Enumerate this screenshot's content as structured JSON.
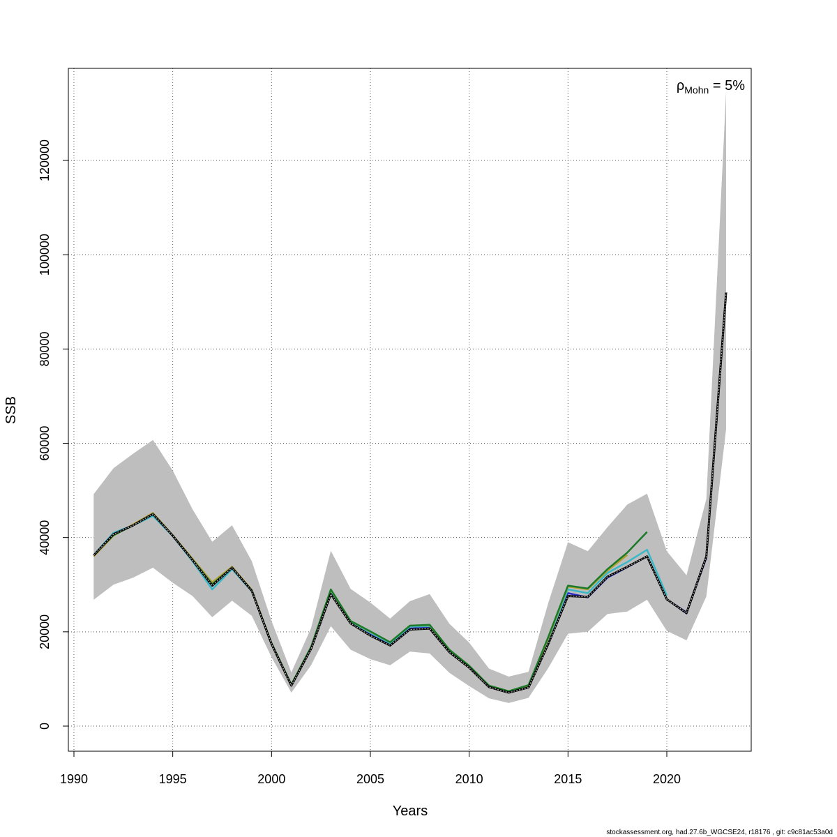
{
  "chart_data": {
    "type": "line",
    "xlabel": "Years",
    "ylabel": "SSB",
    "xlim": [
      1990,
      2023
    ],
    "ylim": [
      0,
      135000
    ],
    "grid": true,
    "x_ticks": [
      1990,
      1995,
      2000,
      2005,
      2010,
      2015,
      2020
    ],
    "y_ticks": [
      0,
      20000,
      40000,
      60000,
      80000,
      100000,
      120000
    ],
    "annotation": {
      "symbol": "ρ",
      "subscript": "Mohn",
      "text": " = 5%"
    },
    "footer": "stockassessment.org, had.27.6b_WGCSE24, r18176 , git: c9c81ac53a0d",
    "band": {
      "x": [
        1991,
        1992,
        1993,
        1994,
        1995,
        1996,
        1997,
        1998,
        1999,
        2000,
        2001,
        2002,
        2003,
        2004,
        2005,
        2006,
        2007,
        2008,
        2009,
        2010,
        2011,
        2012,
        2013,
        2014,
        2015,
        2016,
        2017,
        2018,
        2019,
        2020,
        2021,
        2022,
        2023
      ],
      "lower": [
        26800,
        30000,
        31500,
        33600,
        30400,
        27600,
        23100,
        26600,
        23400,
        14600,
        7100,
        12900,
        21200,
        16200,
        14200,
        12900,
        15800,
        15400,
        11300,
        8500,
        5900,
        4900,
        6000,
        12300,
        19600,
        20000,
        23800,
        24300,
        26800,
        20200,
        18200,
        27500,
        63000
      ],
      "upper": [
        49200,
        54700,
        57800,
        60700,
        54200,
        46000,
        39100,
        42600,
        35000,
        22300,
        11400,
        20800,
        37200,
        29100,
        26200,
        22800,
        26500,
        28000,
        21700,
        17700,
        12200,
        10500,
        11500,
        26100,
        39000,
        37100,
        42200,
        47000,
        49300,
        37100,
        32000,
        48200,
        134500
      ],
      "color": "#bebebe"
    },
    "series": [
      {
        "color": "#000000",
        "dashed": true,
        "x": [
          1991,
          1992,
          1993,
          1994,
          1995,
          1996,
          1997,
          1998,
          1999,
          2000,
          2001,
          2002,
          2003,
          2004,
          2005,
          2006,
          2007,
          2008,
          2009,
          2010,
          2011,
          2012,
          2013,
          2014,
          2015,
          2016,
          2017,
          2018,
          2019,
          2020,
          2021,
          2022,
          2023
        ],
        "values": [
          36200,
          40700,
          42600,
          45000,
          40400,
          35200,
          29800,
          33600,
          28700,
          17400,
          8600,
          16400,
          28000,
          21800,
          19200,
          17100,
          20500,
          20700,
          15700,
          12400,
          8300,
          7100,
          8200,
          17400,
          27600,
          27400,
          31700,
          33800,
          36000,
          26900,
          24000,
          36000,
          92000
        ]
      },
      {
        "color": "#2c2cc8",
        "dashed": false,
        "x": [
          1991,
          1992,
          1993,
          1994,
          1995,
          1996,
          1997,
          1998,
          1999,
          2000,
          2001,
          2002,
          2003,
          2004,
          2005,
          2006,
          2007,
          2008,
          2009,
          2010,
          2011,
          2012,
          2013,
          2014,
          2015,
          2016,
          2017,
          2018,
          2019,
          2020,
          2021,
          2022
        ],
        "values": [
          36200,
          40800,
          42600,
          45000,
          40400,
          35200,
          29900,
          33600,
          28700,
          17400,
          8700,
          16500,
          28100,
          21900,
          19400,
          17300,
          20700,
          20900,
          15800,
          12500,
          8400,
          7200,
          8300,
          17600,
          28200,
          27300,
          31500,
          33700,
          36000,
          26900,
          24100,
          35700
        ]
      },
      {
        "color": "#3ab8c8",
        "dashed": false,
        "x": [
          1991,
          1992,
          1993,
          1994,
          1995,
          1996,
          1997,
          1998,
          1999,
          2000,
          2001,
          2002,
          2003,
          2004,
          2005,
          2006,
          2007,
          2008,
          2009,
          2010,
          2011,
          2012,
          2013,
          2014,
          2015,
          2016,
          2017,
          2018,
          2019,
          2020
        ],
        "values": [
          36300,
          41000,
          42600,
          44600,
          40300,
          35000,
          29000,
          33300,
          28600,
          17500,
          8700,
          16600,
          28600,
          22100,
          19800,
          17600,
          21100,
          21200,
          16000,
          12700,
          8500,
          7300,
          8400,
          18100,
          29000,
          28200,
          32500,
          34800,
          37400,
          27700
        ]
      },
      {
        "color": "#b0a030",
        "dashed": false,
        "x": [
          1991,
          1992,
          1993,
          1994,
          1995,
          1996,
          1997,
          1998,
          1999,
          2000,
          2001,
          2002,
          2003,
          2004,
          2005,
          2006,
          2007,
          2008,
          2009,
          2010,
          2011,
          2012,
          2013,
          2014,
          2015,
          2016,
          2017,
          2018
        ],
        "values": [
          36000,
          40400,
          42800,
          45200,
          40500,
          35500,
          30500,
          33800,
          28900,
          17600,
          8800,
          16800,
          28900,
          22300,
          20000,
          17800,
          21300,
          21400,
          16200,
          12800,
          8600,
          7400,
          8600,
          18600,
          29600,
          29000,
          33000,
          36300
        ]
      },
      {
        "color": "#1a7a2a",
        "dashed": false,
        "x": [
          1991,
          1992,
          1993,
          1994,
          1995,
          1996,
          1997,
          1998,
          1999,
          2000,
          2001,
          2002,
          2003,
          2004,
          2005,
          2006,
          2007,
          2008,
          2009,
          2010,
          2011,
          2012,
          2013,
          2014,
          2015,
          2016,
          2017,
          2018,
          2019
        ],
        "values": [
          36300,
          40500,
          42600,
          45000,
          40400,
          35300,
          30100,
          33600,
          28800,
          17600,
          8800,
          16800,
          29000,
          22300,
          20100,
          17800,
          21300,
          21500,
          16200,
          12800,
          8600,
          7400,
          8700,
          18900,
          29800,
          29200,
          33300,
          36800,
          41200
        ]
      },
      {
        "color": "#2a2a7a",
        "dashed": false,
        "x": [
          2020,
          2021,
          2022
        ],
        "values": [
          26900,
          23900,
          35800
        ]
      }
    ]
  }
}
